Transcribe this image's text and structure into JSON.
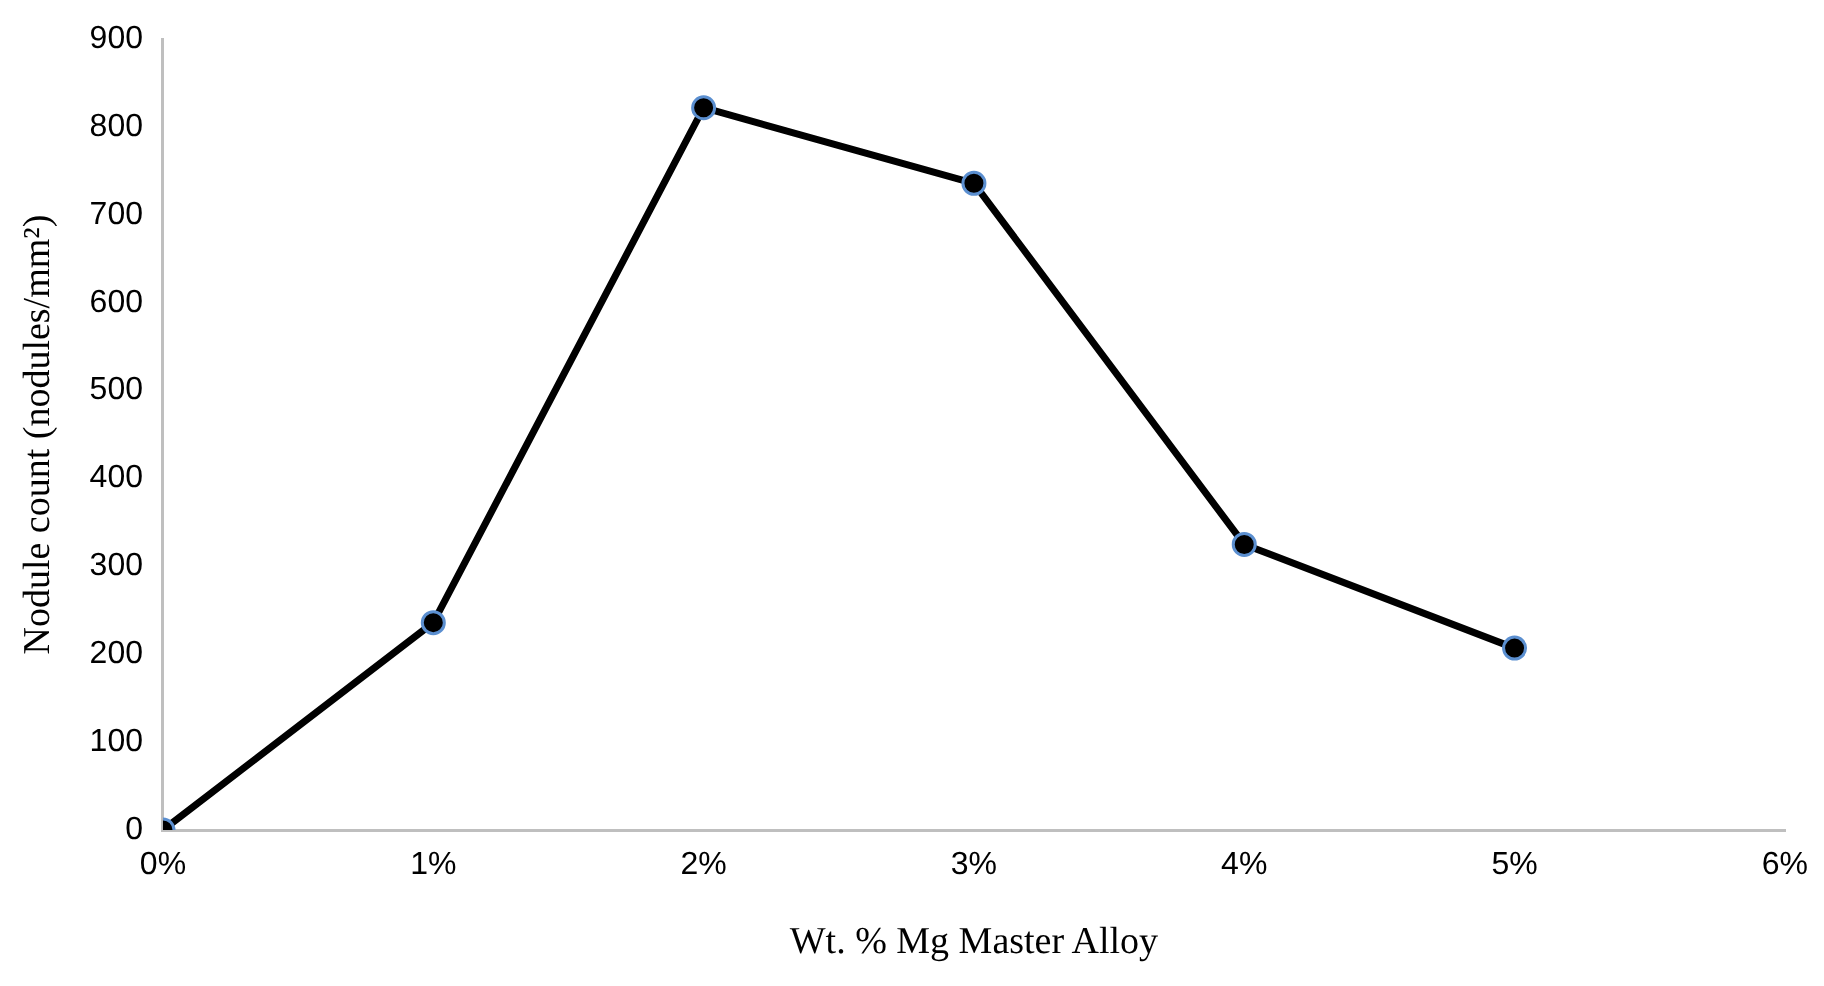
{
  "chart_data": {
    "type": "line",
    "xlabel": "Wt. % Mg Master Alloy",
    "ylabel": "Nodule count (nodules/mm²)",
    "x": [
      0,
      1,
      2,
      3,
      4,
      5
    ],
    "series": [
      {
        "color": "#000000",
        "values": [
          0,
          236,
          822,
          736,
          325,
          207
        ]
      }
    ],
    "xlim": [
      0,
      6
    ],
    "xticks": [
      {
        "value": 0,
        "label": "0%"
      },
      {
        "value": 1,
        "label": "1%"
      },
      {
        "value": 2,
        "label": "2%"
      },
      {
        "value": 3,
        "label": "3%"
      },
      {
        "value": 4,
        "label": "4%"
      },
      {
        "value": 5,
        "label": "5%"
      },
      {
        "value": 6,
        "label": "6%"
      }
    ],
    "ylim": [
      0,
      900
    ],
    "yticks": [
      0,
      100,
      200,
      300,
      400,
      500,
      600,
      700,
      800,
      900
    ],
    "grid": false,
    "legend": false,
    "marker": "circle",
    "line_style": "solid"
  }
}
